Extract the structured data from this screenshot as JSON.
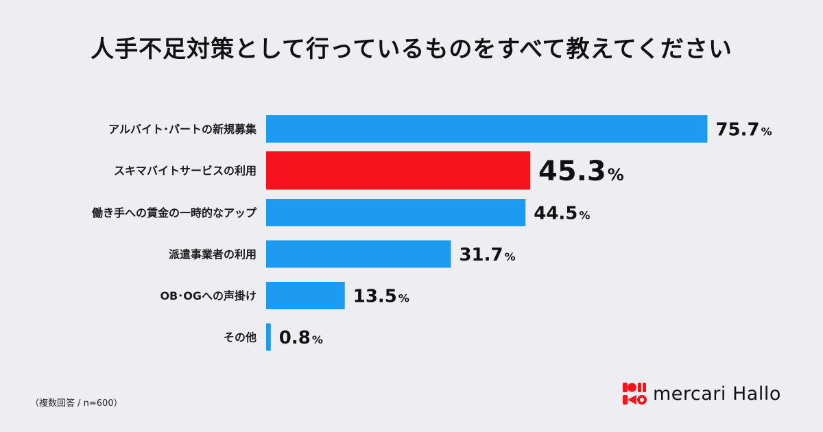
{
  "title": "人手不足対策として行っているものをすべて教えてください",
  "footnote": "（複数回答 / n=600）",
  "brand": {
    "name": "mercari Hallo",
    "logo_icon": "mercari-hallo-logo-icon"
  },
  "colors": {
    "bar": "#1d9bf0",
    "highlight": "#f5141e",
    "text": "#111111",
    "background": "#eeedf2"
  },
  "chart_data": {
    "type": "bar",
    "orientation": "horizontal",
    "unit": "%",
    "categories": [
      "アルバイト･パートの新規募集",
      "スキマバイトサービスの利用",
      "働き手への賃金の一時的なアップ",
      "派遣事業者の利用",
      "OB･OGへの声掛け",
      "その他"
    ],
    "values": [
      75.7,
      45.3,
      44.5,
      31.7,
      13.5,
      0.8
    ],
    "value_labels": [
      "75.7",
      "45.3",
      "44.5",
      "31.7",
      "13.5",
      "0.8"
    ],
    "highlight_index": 1,
    "xlim": [
      0,
      100
    ],
    "grid": false,
    "legend": "none"
  }
}
